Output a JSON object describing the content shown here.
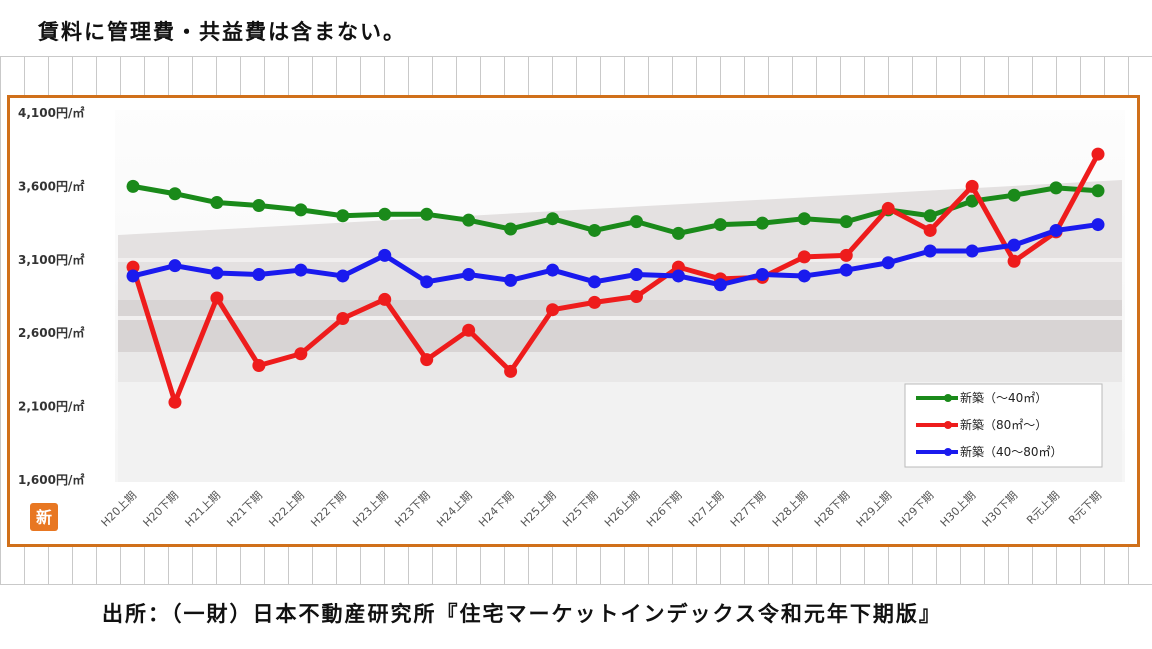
{
  "header": {
    "note": "賃料に管理費・共益費は含まない。"
  },
  "footer": {
    "source": "出所：（一財）日本不動産研究所『住宅マーケットインデックス令和元年下期版』"
  },
  "badge": {
    "label": "新"
  },
  "colors": {
    "frame": "#d0701a",
    "series_green": "#1a8a1a",
    "series_red": "#ee1c1c",
    "series_blue": "#1a1aee",
    "badge": "#e87722"
  },
  "chart_data": {
    "type": "line",
    "title": "",
    "xlabel": "",
    "ylabel": "",
    "ylim": [
      1600,
      4100
    ],
    "yticks": [
      1600,
      2100,
      2600,
      3100,
      3600,
      4100
    ],
    "ytick_labels": [
      "1,600円/㎡",
      "2,100円/㎡",
      "2,600円/㎡",
      "3,100円/㎡",
      "3,600円/㎡",
      "4,100円/㎡"
    ],
    "categories": [
      "H20上期",
      "H20下期",
      "H21上期",
      "H21下期",
      "H22上期",
      "H22下期",
      "H23上期",
      "H23下期",
      "H24上期",
      "H24下期",
      "H25上期",
      "H25下期",
      "H26上期",
      "H26下期",
      "H27上期",
      "H27下期",
      "H28上期",
      "H28下期",
      "H29上期",
      "H29下期",
      "H30上期",
      "H30下期",
      "R元上期",
      "R元下期"
    ],
    "legend_position": "bottom-right",
    "grid": false,
    "series": [
      {
        "name": "新築（～40㎡）",
        "color": "#1a8a1a",
        "values": [
          3600,
          3550,
          3490,
          3470,
          3440,
          3400,
          3410,
          3410,
          3370,
          3310,
          3380,
          3300,
          3360,
          3280,
          3340,
          3350,
          3380,
          3360,
          3440,
          3400,
          3500,
          3540,
          3590,
          3570
        ]
      },
      {
        "name": "新築（80㎡～）",
        "color": "#ee1c1c",
        "values": [
          3050,
          2130,
          2840,
          2380,
          2460,
          2700,
          2830,
          2420,
          2620,
          2340,
          2760,
          2810,
          2850,
          3050,
          2970,
          2980,
          3120,
          3130,
          3450,
          3300,
          3600,
          3090,
          3290,
          3820
        ]
      },
      {
        "name": "新築（40～80㎡）",
        "color": "#1a1aee",
        "values": [
          2990,
          3060,
          3010,
          3000,
          3030,
          2990,
          3130,
          2950,
          3000,
          2960,
          3030,
          2950,
          3000,
          2990,
          2930,
          3000,
          2990,
          3030,
          3080,
          3160,
          3160,
          3200,
          3300,
          3340
        ]
      }
    ]
  }
}
